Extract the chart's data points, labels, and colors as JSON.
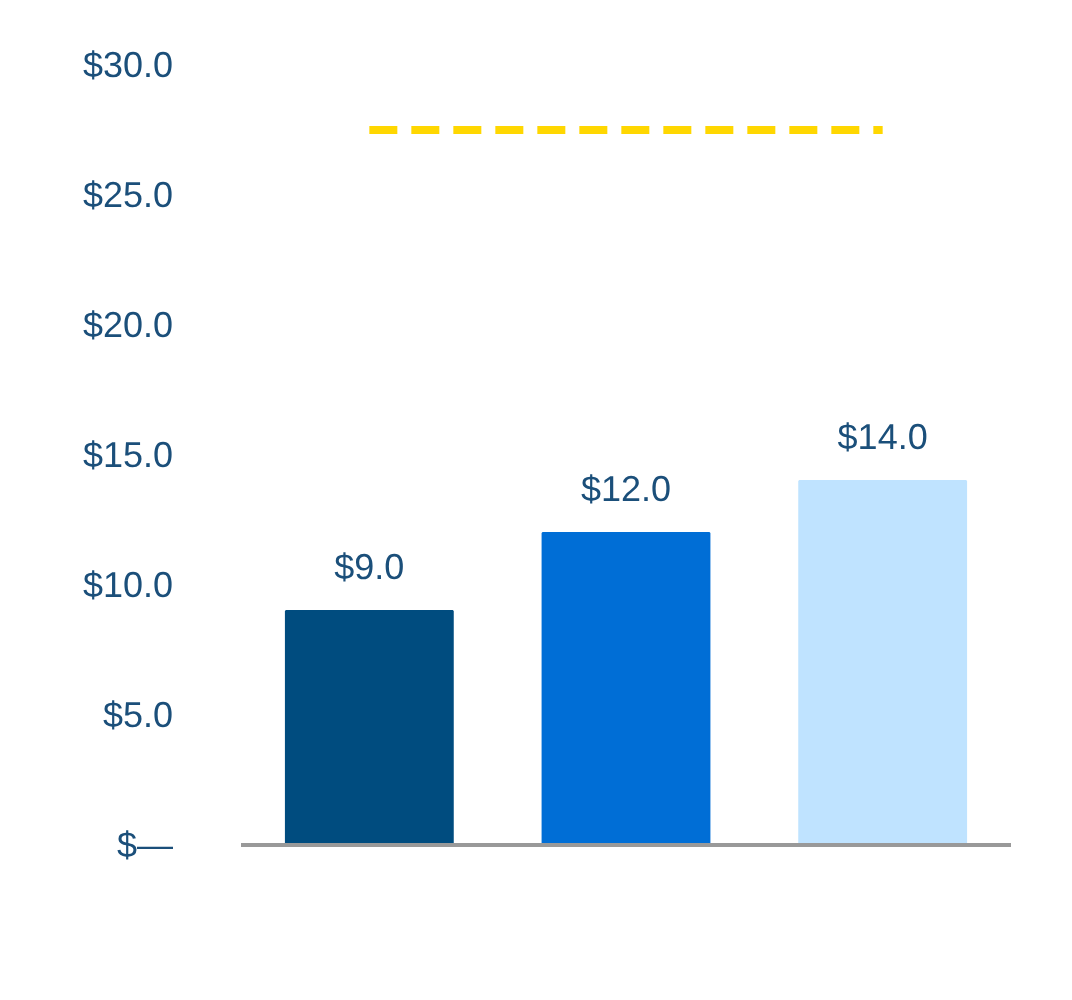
{
  "chart_data": {
    "type": "bar",
    "categories": [
      null,
      null,
      null
    ],
    "values": [
      9.0,
      12.0,
      14.0
    ],
    "colors": [
      "#004c7f",
      "#006ed6",
      "#bfe3ff"
    ],
    "value_labels": [
      "$9.0",
      "$12.0",
      "$14.0"
    ],
    "ylim": [
      0,
      30
    ],
    "yticks": [
      {
        "value": 0,
        "label": "$—"
      },
      {
        "value": 5,
        "label": "$5.0"
      },
      {
        "value": 10,
        "label": "$10.0"
      },
      {
        "value": 15,
        "label": "$15.0"
      },
      {
        "value": 20,
        "label": "$20.0"
      },
      {
        "value": 25,
        "label": "$25.0"
      },
      {
        "value": 30,
        "label": "$30.0"
      }
    ],
    "ref_lines": [
      {
        "axis": "y",
        "value": 27.5,
        "label": null,
        "color": "#ffd700",
        "line_style": "dashed"
      }
    ],
    "grid": false
  }
}
